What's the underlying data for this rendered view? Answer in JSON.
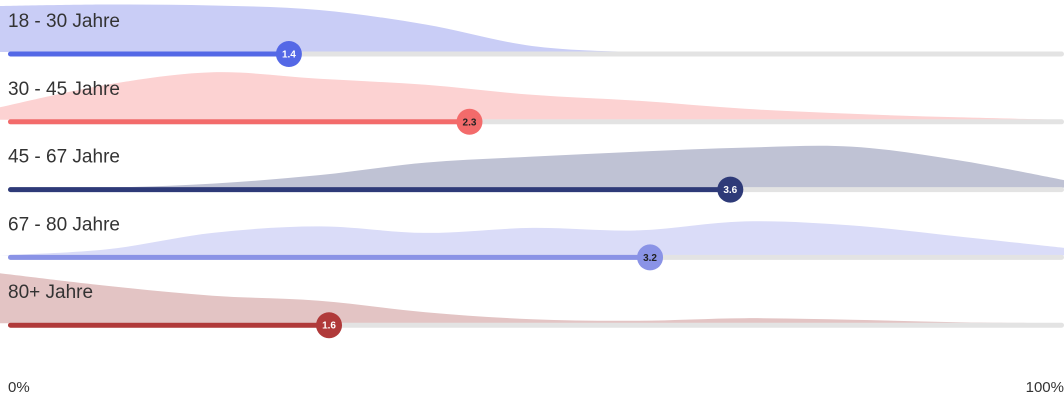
{
  "chart_data": {
    "type": "area",
    "x_tick_labels": [
      "0%",
      "100%"
    ],
    "xlim": [
      0,
      100
    ],
    "series": [
      {
        "name": "18 - 30 Jahre",
        "value": 1.4,
        "color": "#5468e6",
        "fill": "#c9cdf6",
        "text_color": "#ffffff",
        "distribution": [
          0.92,
          0.95,
          0.93,
          0.84,
          0.55,
          0.12,
          0.0,
          0.0,
          0.0,
          0.0,
          0.0
        ]
      },
      {
        "name": "30 - 45 Jahre",
        "value": 2.3,
        "color": "#f36b6b",
        "fill": "#fcd2d2",
        "text_color": "#222222",
        "distribution": [
          0.25,
          0.7,
          0.95,
          0.82,
          0.7,
          0.5,
          0.38,
          0.22,
          0.12,
          0.05,
          0.0
        ]
      },
      {
        "name": "45 - 67 Jahre",
        "value": 3.6,
        "color": "#2e3a78",
        "fill": "#bfc2d4",
        "text_color": "#ffffff",
        "distribution": [
          0.0,
          0.0,
          0.08,
          0.25,
          0.5,
          0.62,
          0.72,
          0.8,
          0.82,
          0.55,
          0.15
        ]
      },
      {
        "name": "67 - 80 Jahre",
        "value": 3.2,
        "color": "#8a93e6",
        "fill": "#dadcf8",
        "text_color": "#222222",
        "distribution": [
          0.0,
          0.12,
          0.45,
          0.58,
          0.45,
          0.55,
          0.5,
          0.68,
          0.6,
          0.38,
          0.15
        ]
      },
      {
        "name": "80+ Jahre",
        "value": 1.6,
        "color": "#b03a3a",
        "fill": "#e3c4c4",
        "text_color": "#ffffff",
        "distribution": [
          1.0,
          0.75,
          0.55,
          0.45,
          0.22,
          0.08,
          0.05,
          0.1,
          0.07,
          0.02,
          0.0
        ]
      }
    ],
    "value_max": 5,
    "grid": false,
    "legend": "none"
  }
}
